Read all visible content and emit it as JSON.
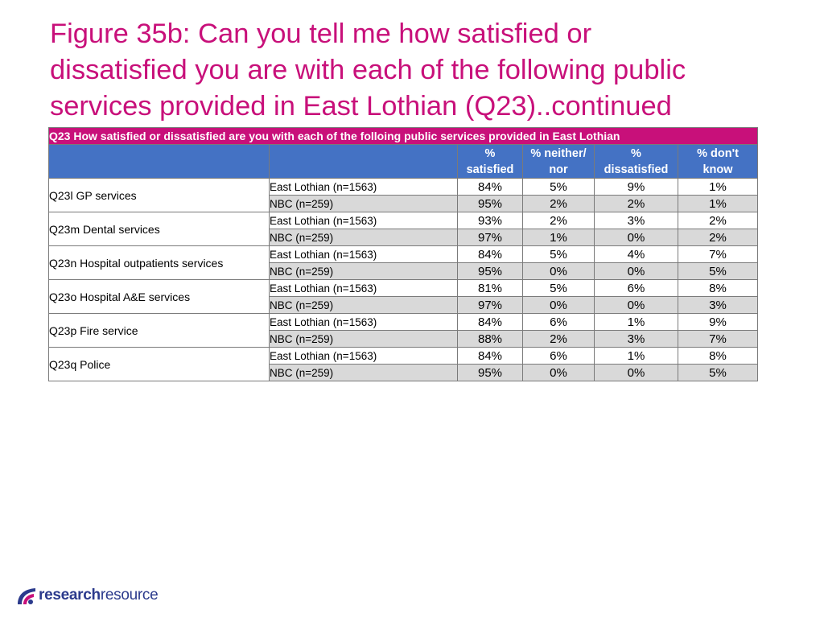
{
  "title": {
    "line1": "Figure 35b: Can you tell me how satisfied or",
    "line2": "dissatisfied you are with each of the following public",
    "line3": "services provided in East Lothian (Q23)..continued"
  },
  "table": {
    "caption": "Q23 How satisfied or dissatisfied are you with each of the folloing public services provided in East Lothian",
    "headers": {
      "satisfied": {
        "line1": "%",
        "line2": "satisfied"
      },
      "neither": {
        "line1": "% neither/",
        "line2": "nor"
      },
      "dissatisfied": {
        "line1": "%",
        "line2": "dissatisfied"
      },
      "dont_know": {
        "line1": "% don't",
        "line2": "know"
      }
    },
    "rows": [
      {
        "question": "Q23l GP services",
        "el": {
          "group": "East Lothian (n=1563)",
          "satisfied": "84%",
          "neither": "5%",
          "dissatisfied": "9%",
          "dont_know": "1%"
        },
        "nbc": {
          "group": "NBC (n=259)",
          "satisfied": "95%",
          "neither": "2%",
          "dissatisfied": "2%",
          "dont_know": "1%"
        }
      },
      {
        "question": "Q23m Dental services",
        "el": {
          "group": "East Lothian (n=1563)",
          "satisfied": "93%",
          "neither": "2%",
          "dissatisfied": "3%",
          "dont_know": "2%"
        },
        "nbc": {
          "group": "NBC (n=259)",
          "satisfied": "97%",
          "neither": "1%",
          "dissatisfied": "0%",
          "dont_know": "2%"
        }
      },
      {
        "question": "Q23n Hospital outpatients services",
        "el": {
          "group": "East Lothian (n=1563)",
          "satisfied": "84%",
          "neither": "5%",
          "dissatisfied": "4%",
          "dont_know": "7%"
        },
        "nbc": {
          "group": "NBC (n=259)",
          "satisfied": "95%",
          "neither": "0%",
          "dissatisfied": "0%",
          "dont_know": "5%"
        }
      },
      {
        "question": "Q23o Hospital A&E services",
        "el": {
          "group": "East Lothian (n=1563)",
          "satisfied": "81%",
          "neither": "5%",
          "dissatisfied": "6%",
          "dont_know": "8%"
        },
        "nbc": {
          "group": "NBC (n=259)",
          "satisfied": "97%",
          "neither": "0%",
          "dissatisfied": "0%",
          "dont_know": "3%"
        }
      },
      {
        "question": "Q23p Fire service",
        "el": {
          "group": "East Lothian (n=1563)",
          "satisfied": "84%",
          "neither": "6%",
          "dissatisfied": "1%",
          "dont_know": "9%"
        },
        "nbc": {
          "group": "NBC (n=259)",
          "satisfied": "88%",
          "neither": "2%",
          "dissatisfied": "3%",
          "dont_know": "7%"
        }
      },
      {
        "question": "Q23q Police",
        "el": {
          "group": "East Lothian (n=1563)",
          "satisfied": "84%",
          "neither": "6%",
          "dissatisfied": "1%",
          "dont_know": "8%"
        },
        "nbc": {
          "group": "NBC (n=259)",
          "satisfied": "95%",
          "neither": "0%",
          "dissatisfied": "0%",
          "dont_know": "5%"
        }
      }
    ]
  },
  "logo": {
    "bold": "research",
    "light": "resource"
  },
  "colors": {
    "accent": "#c8107a",
    "header": "#4472c4",
    "shade": "#d9d9d9",
    "logo": "#2b3a8c"
  }
}
